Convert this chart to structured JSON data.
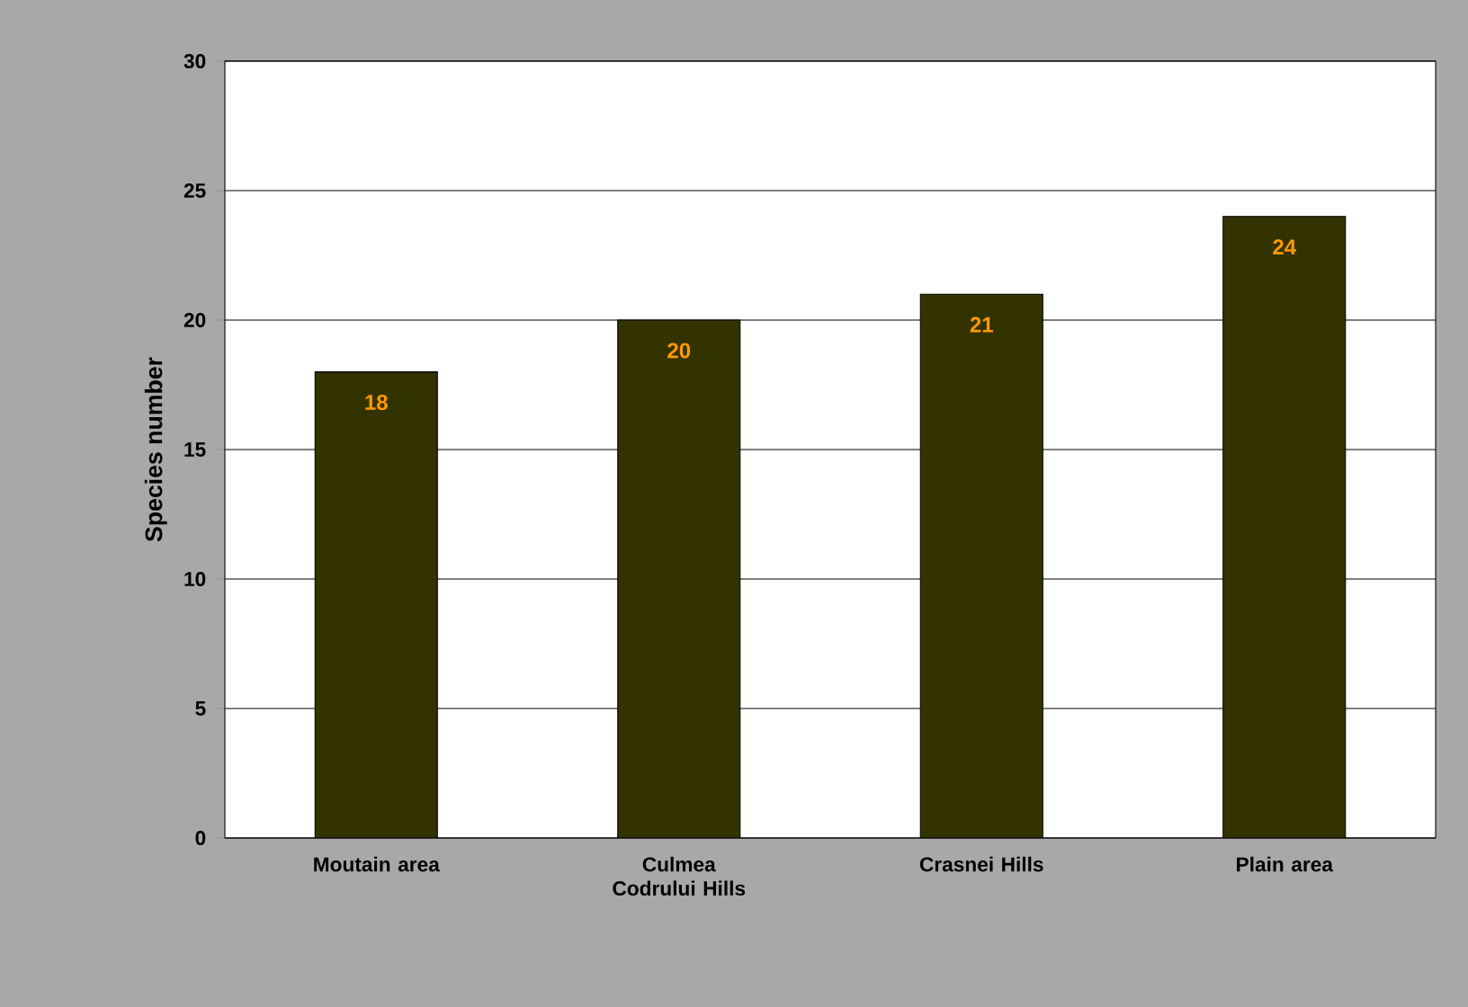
{
  "chart_data": {
    "type": "bar",
    "ylabel": "Species number",
    "categories": [
      "Moutain area",
      "Culmea Codrului Hills",
      "Crasnei Hills",
      "Plain area"
    ],
    "values": [
      18,
      20,
      21,
      24
    ],
    "color": "#333300",
    "data_labels": true,
    "ylim": [
      0,
      30
    ],
    "yticks": [
      0,
      5,
      10,
      15,
      20,
      25,
      30
    ],
    "grid": "y"
  }
}
